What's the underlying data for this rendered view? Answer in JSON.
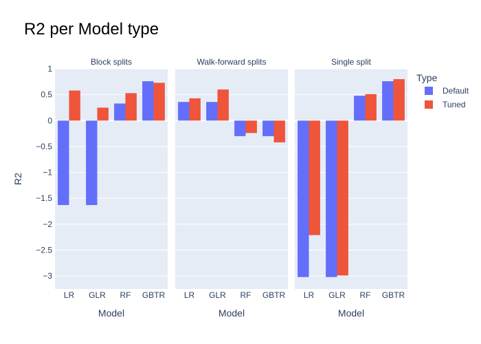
{
  "title": "R2 per Model type",
  "legend": {
    "title": "Type",
    "placement": "right"
  },
  "colors": {
    "Default": "#636efa",
    "Tuned": "#ef553b",
    "plot_bg": "#e5ecf6",
    "grid": "#ffffff",
    "text": "#2a3f5f"
  },
  "chart_data": {
    "type": "bar",
    "barmode": "group",
    "title": "R2 per Model type",
    "ylabel": "R2",
    "ylim": [
      -3.25,
      1.0
    ],
    "yticks": [
      1,
      0.5,
      0,
      -0.5,
      -1,
      -1.5,
      -2,
      -2.5,
      -3
    ],
    "ytick_labels": [
      "1",
      "0.5",
      "0",
      "−0.5",
      "−1",
      "−1.5",
      "−2",
      "−2.5",
      "−3"
    ],
    "grid": true,
    "categories": [
      "LR",
      "GLR",
      "RF",
      "GBTR"
    ],
    "legend_entries": [
      "Default",
      "Tuned"
    ],
    "facets": [
      {
        "name": "Block splits",
        "xlabel": "Model",
        "series": [
          {
            "name": "Default",
            "values": [
              -1.63,
              -1.63,
              0.33,
              0.76
            ]
          },
          {
            "name": "Tuned",
            "values": [
              0.58,
              0.25,
              0.53,
              0.73
            ]
          }
        ]
      },
      {
        "name": "Walk-forward splits",
        "xlabel": "Model",
        "series": [
          {
            "name": "Default",
            "values": [
              0.36,
              0.36,
              -0.3,
              -0.3
            ]
          },
          {
            "name": "Tuned",
            "values": [
              0.43,
              0.6,
              -0.24,
              -0.42
            ]
          }
        ]
      },
      {
        "name": "Single split",
        "xlabel": "Model",
        "series": [
          {
            "name": "Default",
            "values": [
              -3.02,
              -3.02,
              0.48,
              0.76
            ]
          },
          {
            "name": "Tuned",
            "values": [
              -2.21,
              -2.99,
              0.51,
              0.8
            ]
          }
        ]
      }
    ]
  }
}
